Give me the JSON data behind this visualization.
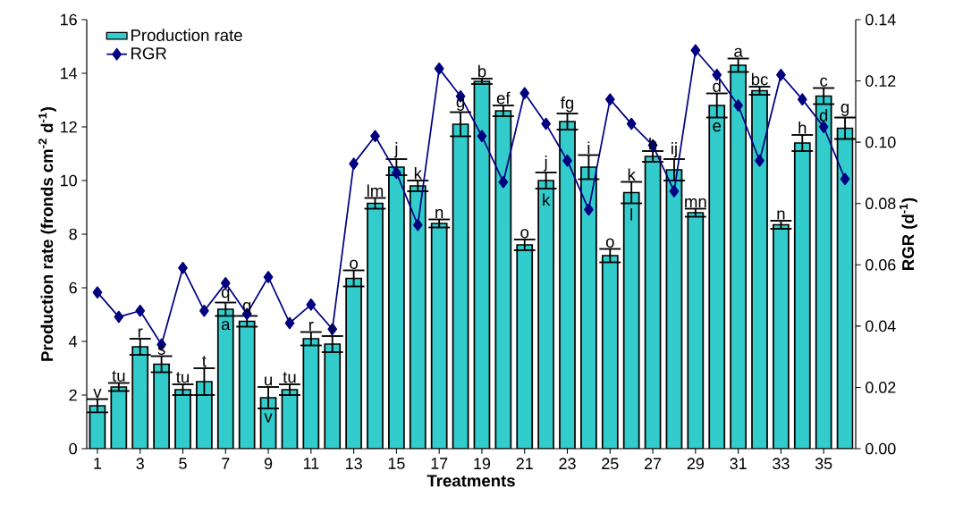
{
  "chart_data": {
    "type": "bar",
    "xlabel": "Treatments",
    "ylabel": "Production rate (fronds cm$^{-2}$ d$^{-1}$)",
    "y2label": "RGR (d$^{-1}$)",
    "x": [
      1,
      2,
      3,
      4,
      5,
      6,
      7,
      8,
      9,
      10,
      11,
      12,
      13,
      14,
      15,
      16,
      17,
      18,
      19,
      20,
      21,
      22,
      23,
      24,
      25,
      26,
      27,
      28,
      29,
      30,
      31,
      32,
      33,
      34,
      35,
      36
    ],
    "xlim": [
      0.5,
      36.5
    ],
    "xticks": [
      1,
      3,
      5,
      7,
      9,
      11,
      13,
      15,
      17,
      19,
      21,
      23,
      25,
      27,
      29,
      31,
      33,
      35
    ],
    "ylim": [
      0,
      16
    ],
    "yticks": [
      0,
      2,
      4,
      6,
      8,
      10,
      12,
      14,
      16
    ],
    "y2lim": [
      0,
      0.14
    ],
    "y2ticks": [
      {
        "value": 0,
        "label": "0.00"
      },
      {
        "value": 0.02,
        "label": "0.02"
      },
      {
        "value": 0.04,
        "label": "0.04"
      },
      {
        "value": 0.06,
        "label": "0.06"
      },
      {
        "value": 0.08,
        "label": "0.08"
      },
      {
        "value": 0.1,
        "label": "0.10"
      },
      {
        "value": 0.12,
        "label": "0.12"
      },
      {
        "value": 0.14,
        "label": "0.14"
      }
    ],
    "legend": "top left",
    "grid": false,
    "series": [
      {
        "name": "Production rate",
        "color": "#33cccc",
        "values": [
          1.6,
          2.3,
          3.8,
          3.15,
          2.2,
          2.5,
          5.2,
          4.75,
          1.9,
          2.2,
          4.1,
          3.9,
          6.35,
          9.15,
          10.5,
          9.8,
          8.4,
          12.1,
          13.7,
          12.6,
          7.6,
          10.0,
          12.2,
          10.5,
          7.2,
          9.55,
          10.9,
          10.4,
          8.8,
          12.8,
          14.3,
          13.35,
          8.35,
          11.4,
          13.15,
          11.95
        ],
        "errors": [
          0.25,
          0.15,
          0.3,
          0.3,
          0.2,
          0.5,
          0.25,
          0.2,
          0.4,
          0.2,
          0.25,
          0.3,
          0.3,
          0.2,
          0.3,
          0.2,
          0.15,
          0.45,
          0.1,
          0.2,
          0.2,
          0.3,
          0.3,
          0.45,
          0.25,
          0.4,
          0.2,
          0.4,
          0.15,
          0.45,
          0.25,
          0.15,
          0.15,
          0.3,
          0.3,
          0.4
        ]
      },
      {
        "name": "RGR",
        "type": "line",
        "axis": "y2",
        "color": "#000080",
        "marker": "diamond",
        "values": [
          0.051,
          0.043,
          0.045,
          0.034,
          0.059,
          0.045,
          0.054,
          0.044,
          0.056,
          0.041,
          0.047,
          0.039,
          0.093,
          0.102,
          0.09,
          0.073,
          0.124,
          0.115,
          0.102,
          0.087,
          0.116,
          0.106,
          0.094,
          0.078,
          0.114,
          0.106,
          0.099,
          0.084,
          0.13,
          0.122,
          0.112,
          0.094,
          0.122,
          0.114,
          0.105,
          0.088
        ]
      }
    ],
    "annotations": [
      {
        "text": "v",
        "x": 1,
        "y": 1.85
      },
      {
        "text": "tu",
        "x": 2,
        "y": 2.45
      },
      {
        "text": "r",
        "x": 3,
        "y": 4.1
      },
      {
        "text": "s",
        "x": 4,
        "y": 3.45
      },
      {
        "text": "tu",
        "x": 5,
        "y": 2.4
      },
      {
        "text": "t",
        "x": 6,
        "y": 3.0
      },
      {
        "text": "q",
        "x": 7,
        "y": 5.45
      },
      {
        "text": "a",
        "x": 7,
        "y": 5.2
      },
      {
        "text": "q",
        "x": 8,
        "y": 4.95
      },
      {
        "text": "u",
        "x": 9,
        "y": 2.3
      },
      {
        "text": "v",
        "x": 9,
        "y": 1.9
      },
      {
        "text": "tu",
        "x": 10,
        "y": 2.4
      },
      {
        "text": "r",
        "x": 11,
        "y": 4.35
      },
      {
        "text": "r",
        "x": 12,
        "y": 4.2
      },
      {
        "text": "o",
        "x": 13,
        "y": 6.65
      },
      {
        "text": "lm",
        "x": 14,
        "y": 9.35
      },
      {
        "text": "j",
        "x": 15,
        "y": 10.8
      },
      {
        "text": "k",
        "x": 16,
        "y": 10.0
      },
      {
        "text": "n",
        "x": 17,
        "y": 8.55
      },
      {
        "text": "g",
        "x": 18,
        "y": 12.55
      },
      {
        "text": "b",
        "x": 19,
        "y": 13.8
      },
      {
        "text": "ef",
        "x": 20,
        "y": 12.8
      },
      {
        "text": "o",
        "x": 21,
        "y": 7.8
      },
      {
        "text": "j",
        "x": 22,
        "y": 10.3
      },
      {
        "text": "k",
        "x": 22,
        "y": 10.0
      },
      {
        "text": "fg",
        "x": 23,
        "y": 12.5
      },
      {
        "text": "i",
        "x": 24,
        "y": 10.95
      },
      {
        "text": "o",
        "x": 25,
        "y": 7.45
      },
      {
        "text": "k",
        "x": 26,
        "y": 9.95
      },
      {
        "text": "l",
        "x": 26,
        "y": 9.55
      },
      {
        "text": "h",
        "x": 27,
        "y": 11.1
      },
      {
        "text": "ij",
        "x": 28,
        "y": 10.8
      },
      {
        "text": "mn",
        "x": 29,
        "y": 8.95
      },
      {
        "text": "d",
        "x": 30,
        "y": 13.25
      },
      {
        "text": "e",
        "x": 30,
        "y": 12.8
      },
      {
        "text": "a",
        "x": 31,
        "y": 14.55
      },
      {
        "text": "bc",
        "x": 32,
        "y": 13.5
      },
      {
        "text": "n",
        "x": 33,
        "y": 8.5
      },
      {
        "text": "h",
        "x": 34,
        "y": 11.7
      },
      {
        "text": "c",
        "x": 35,
        "y": 13.45
      },
      {
        "text": "d",
        "x": 35,
        "y": 13.15
      },
      {
        "text": "g",
        "x": 36,
        "y": 12.35
      }
    ]
  }
}
